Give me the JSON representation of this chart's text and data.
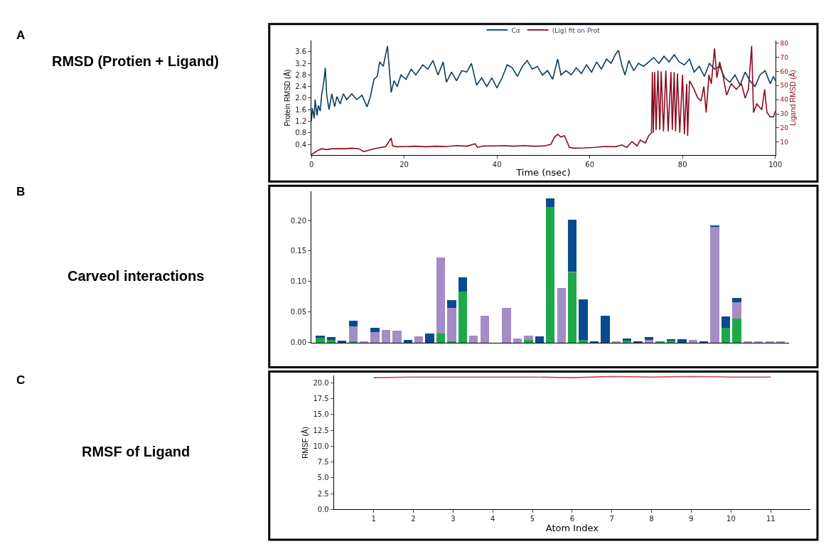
{
  "chart_data": [
    {
      "type": "line",
      "annotations": [
        "A",
        "RMSD (Protien + Ligand)"
      ],
      "xlabel": "Time (nsec)",
      "ylabel": "Protein RMSD (Å)",
      "y2label": "Ligand RMSD (Å)",
      "xlim": [
        0,
        100
      ],
      "xticks": [
        0,
        20,
        40,
        60,
        80,
        100
      ],
      "ylim": [
        0.04,
        3.98
      ],
      "yticks": [
        0.4,
        0.8,
        1.2,
        1.6,
        {
          "value": 2,
          "label": "2.0"
        },
        2.4,
        2.8,
        3.2,
        3.6
      ],
      "y2lim": [
        1,
        81.6
      ],
      "y2ticks": [
        10,
        20,
        30,
        40,
        50,
        60,
        70,
        80
      ],
      "legend": "top",
      "series": [
        {
          "name": "Cα",
          "color": "#0d3d5c",
          "x": [
            0,
            0.2,
            0.6,
            0.8,
            1.2,
            1.5,
            1.9,
            2.2,
            2.7,
            3.0,
            3.3,
            3.8,
            4.4,
            5.0,
            5.5,
            6.2,
            6.9,
            7.6,
            8.7,
            9.8,
            10.9,
            12.0,
            12.7,
            13.5,
            14.2,
            14.7,
            15.5,
            16.0,
            16.4,
            16.9,
            17.2,
            17.8,
            18.5,
            19.3,
            20.4,
            21.5,
            22.5,
            24.0,
            25.1,
            26.2,
            27.3,
            28.4,
            29.1,
            30.2,
            31.3,
            32.4,
            33.5,
            34.5,
            35.6,
            36.7,
            37.8,
            38.9,
            40.0,
            41.1,
            42.2,
            43.3,
            44.4,
            45.5,
            46.5,
            47.6,
            48.7,
            49.8,
            50.9,
            52.0,
            53.1,
            53.8,
            54.9,
            56.0,
            57.1,
            58.2,
            59.3,
            60.4,
            61.5,
            62.5,
            63.6,
            64.6,
            65.5,
            66.2,
            66.9,
            67.6,
            68.4,
            69.5,
            70.5,
            71.6,
            72.7,
            73.8,
            74.9,
            76.0,
            77.1,
            78.2,
            79.3,
            80.4,
            81.5,
            82.5,
            83.6,
            84.7,
            85.8,
            86.9,
            88.0,
            89.1,
            90.2,
            91.3,
            92.4,
            93.5,
            94.5,
            95.6,
            96.7,
            97.8,
            98.9,
            99.6,
            100
          ],
          "values": [
            1.2,
            1.65,
            1.3,
            1.95,
            1.4,
            1.75,
            1.55,
            2.1,
            2.6,
            3.05,
            2.1,
            1.6,
            2.15,
            1.7,
            2.05,
            1.8,
            2.15,
            1.95,
            2.15,
            1.95,
            2.1,
            1.7,
            2.05,
            2.65,
            2.75,
            3.25,
            3.1,
            3.5,
            3.8,
            2.8,
            2.2,
            2.6,
            2.4,
            2.8,
            2.65,
            3.0,
            2.8,
            3.15,
            3.0,
            3.3,
            2.8,
            3.25,
            2.55,
            2.9,
            2.6,
            2.95,
            2.9,
            3.2,
            2.45,
            2.7,
            2.4,
            2.7,
            2.35,
            2.7,
            3.15,
            3.05,
            2.75,
            3.1,
            3.3,
            3.0,
            3.1,
            2.8,
            2.95,
            2.65,
            3.35,
            2.8,
            2.95,
            2.8,
            3.05,
            2.85,
            3.15,
            2.9,
            3.25,
            3.0,
            3.35,
            3.2,
            3.5,
            3.65,
            3.15,
            2.8,
            3.3,
            2.95,
            3.2,
            3.1,
            3.25,
            3.4,
            3.2,
            3.45,
            3.25,
            3.5,
            3.25,
            3.15,
            3.35,
            2.9,
            3.1,
            2.75,
            3.2,
            3.0,
            3.1,
            2.7,
            2.55,
            2.8,
            2.45,
            2.9,
            2.6,
            2.4,
            2.8,
            2.95,
            2.5,
            2.75,
            2.6
          ]
        },
        {
          "name": "(Lig) fit on Prot",
          "color": "#8b0a1e",
          "axis": "y2",
          "x": [
            0,
            0.7,
            1.5,
            2.2,
            3.3,
            4.4,
            5.8,
            7.3,
            8.7,
            10.2,
            11.3,
            12.4,
            13.5,
            14.5,
            16.0,
            16.7,
            17.2,
            17.5,
            18.5,
            20.4,
            22.5,
            24.7,
            26.9,
            29.1,
            31.3,
            33.5,
            35.3,
            35.8,
            37.1,
            39.3,
            41.5,
            43.6,
            45.8,
            48.0,
            50.2,
            51.6,
            52.4,
            53.1,
            53.8,
            54.5,
            55.1,
            55.6,
            56.7,
            58.9,
            61.1,
            63.3,
            65.5,
            66.9,
            68.0,
            69.1,
            70.2,
            70.9,
            72.0,
            72.7,
            73.3,
            73.5,
            73.7,
            74.0,
            74.3,
            74.7,
            75.1,
            75.4,
            75.9,
            76.4,
            76.9,
            77.5,
            77.8,
            78.2,
            78.5,
            78.9,
            79.4,
            80.0,
            80.4,
            80.9,
            81.1,
            81.5,
            82.5,
            83.3,
            84.0,
            84.6,
            85.1,
            85.7,
            86.2,
            86.9,
            87.4,
            88.0,
            88.7,
            89.5,
            90.5,
            91.6,
            92.7,
            93.5,
            94.2,
            94.9,
            95.3,
            96.0,
            97.1,
            97.7,
            98.2,
            98.9,
            99.6,
            100
          ],
          "values": [
            1.2,
            2.6,
            4.3,
            5.3,
            4.7,
            5.3,
            5.3,
            5.3,
            5.7,
            5.3,
            3.3,
            4.3,
            5.3,
            5.9,
            6.7,
            10.4,
            12.8,
            7.3,
            6.7,
            6.9,
            7.1,
            6.7,
            7.1,
            6.9,
            7.5,
            7.1,
            8.8,
            6.3,
            7.3,
            7.3,
            7.5,
            7.1,
            7.5,
            7.1,
            7.3,
            8.4,
            13.5,
            15.5,
            13.5,
            14.5,
            10.4,
            6.3,
            5.7,
            5.9,
            6.3,
            6.9,
            6.7,
            8.0,
            6.3,
            10.4,
            7.3,
            11.4,
            9.4,
            14.5,
            16.6,
            59.5,
            16.6,
            59.5,
            18.6,
            60.5,
            18.6,
            59.9,
            17.6,
            60.5,
            17.6,
            59.5,
            18.6,
            59.5,
            17.6,
            58.5,
            16.6,
            57.5,
            15.5,
            51.3,
            14.5,
            53.4,
            47.3,
            41.1,
            39.1,
            49.3,
            30.9,
            57.5,
            51.3,
            76.3,
            55.4,
            66.7,
            57.5,
            43.2,
            51.3,
            47.3,
            51.3,
            41.1,
            47.3,
            78.0,
            30.9,
            37.0,
            32.9,
            47.3,
            30.9,
            27.8,
            27.8,
            31.9
          ]
        }
      ]
    },
    {
      "type": "bar",
      "stacked": true,
      "annotations": [
        "B",
        "Carveol interactions"
      ],
      "ylim": [
        0,
        0.2475
      ],
      "yticks": [
        {
          "value": 0,
          "label": "0.00"
        },
        {
          "value": 0.05,
          "label": "0.05"
        },
        {
          "value": 0.1,
          "label": "0.10"
        },
        {
          "value": 0.15,
          "label": "0.15"
        },
        {
          "value": 0.2,
          "label": "0.20"
        }
      ],
      "categories": [
        null,
        null,
        null,
        null,
        null,
        null,
        null,
        null,
        null,
        null,
        null,
        null,
        null,
        null,
        null,
        null,
        null,
        null,
        null,
        null,
        null,
        null,
        null,
        null,
        null,
        null,
        null,
        null,
        null,
        null,
        null,
        null,
        null,
        null,
        null,
        null,
        null,
        null,
        null,
        null,
        null,
        null,
        null
      ],
      "series": [
        {
          "color": "#1fa84a",
          "values": [
            0.008,
            0.005,
            0,
            0.002,
            0,
            0,
            0,
            0,
            0,
            0,
            0,
            0.015,
            0.002,
            0.084,
            0,
            0,
            0,
            0,
            0,
            0.005,
            0,
            0.222,
            0,
            0.115,
            0.004,
            0,
            0,
            0,
            0.003,
            0,
            0,
            0.002,
            0.003,
            0,
            0,
            0,
            0,
            0.024,
            0.04,
            0,
            0,
            0,
            0
          ]
        },
        {
          "color": "#a48cc4",
          "values": [
            0,
            0,
            0,
            0.025,
            0.001,
            0.017,
            0.021,
            0.02,
            0,
            0.01,
            0,
            0.124,
            0.055,
            0,
            0.011,
            0.044,
            0,
            0.057,
            0.007,
            0.007,
            0,
            0,
            0.089,
            0.001,
            0,
            0,
            0,
            0.001,
            0,
            0,
            0.005,
            0,
            0,
            0,
            0.005,
            0,
            0.189,
            0,
            0.026,
            0.001,
            0.001,
            0.002,
            0.002
          ]
        },
        {
          "color": "#0a4a90",
          "values": [
            0.003,
            0.004,
            0.003,
            0.009,
            0,
            0.007,
            0,
            0,
            0.005,
            0,
            0.015,
            0,
            0.013,
            0.023,
            0,
            0,
            0,
            0,
            0,
            0,
            0.01,
            0.014,
            0,
            0.085,
            0.067,
            0.001,
            0.044,
            0,
            0.004,
            0.002,
            0.004,
            0,
            0.003,
            0.006,
            0,
            0.002,
            0.003,
            0.019,
            0.007,
            0,
            0,
            0,
            0
          ]
        }
      ]
    },
    {
      "type": "line",
      "annotations": [
        "C",
        "RMSF of Ligand"
      ],
      "xlabel": "Atom Index",
      "ylabel": "RMSF (Å)",
      "xlim": [
        0,
        12
      ],
      "xticks": [
        1,
        2,
        3,
        4,
        5,
        6,
        7,
        8,
        9,
        10,
        11
      ],
      "ylim": [
        0,
        21.1
      ],
      "yticks": [
        {
          "value": 0,
          "label": "0.0"
        },
        {
          "value": 2.5,
          "label": "2.5"
        },
        {
          "value": 5,
          "label": "5.0"
        },
        {
          "value": 7.5,
          "label": "7.5"
        },
        {
          "value": 10,
          "label": "10.0"
        },
        {
          "value": 12.5,
          "label": "12.5"
        },
        {
          "value": 15,
          "label": "15.0"
        },
        {
          "value": 17.5,
          "label": "17.5"
        },
        {
          "value": 20,
          "label": "20.0"
        }
      ],
      "series": [
        {
          "color": "#c94a5a",
          "x": [
            1,
            2,
            3,
            4,
            5,
            6,
            7,
            8,
            9,
            10,
            11
          ],
          "values": [
            20.8,
            20.9,
            20.9,
            20.9,
            20.9,
            20.8,
            21.0,
            20.9,
            21.0,
            20.9,
            20.9
          ]
        }
      ]
    }
  ]
}
